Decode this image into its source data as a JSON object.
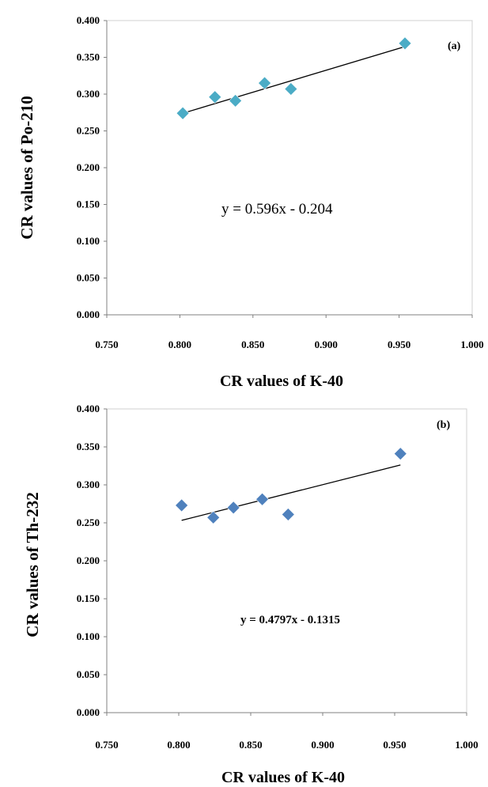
{
  "chart_data": [
    {
      "type": "scatter",
      "panel_label": "(a)",
      "xlabel": "CR values of K-40",
      "ylabel": "CR values of Po-210",
      "xlim": [
        0.75,
        1.0
      ],
      "ylim": [
        0.0,
        0.4
      ],
      "x_ticks": [
        "0.750",
        "0.800",
        "0.850",
        "0.900",
        "0.950",
        "1.000"
      ],
      "y_ticks": [
        "0.000",
        "0.050",
        "0.100",
        "0.150",
        "0.200",
        "0.250",
        "0.300",
        "0.350",
        "0.400"
      ],
      "points": [
        {
          "x": 0.802,
          "y": 0.274
        },
        {
          "x": 0.824,
          "y": 0.296
        },
        {
          "x": 0.838,
          "y": 0.291
        },
        {
          "x": 0.858,
          "y": 0.315
        },
        {
          "x": 0.876,
          "y": 0.307
        },
        {
          "x": 0.954,
          "y": 0.369
        }
      ],
      "trendline": {
        "slope": 0.596,
        "intercept": -0.204,
        "x_range": [
          0.802,
          0.954
        ]
      },
      "equation": "y = 0.596x - 0.204",
      "marker_color": "#4bacc6",
      "grid": false
    },
    {
      "type": "scatter",
      "panel_label": "(b)",
      "xlabel": "CR values of K-40",
      "ylabel": "CR values of Th-232",
      "xlim": [
        0.75,
        1.0
      ],
      "ylim": [
        0.0,
        0.4
      ],
      "x_ticks": [
        "0.750",
        "0.800",
        "0.850",
        "0.900",
        "0.950",
        "1.000"
      ],
      "y_ticks": [
        "0.000",
        "0.050",
        "0.100",
        "0.150",
        "0.200",
        "0.250",
        "0.300",
        "0.350",
        "0.400"
      ],
      "points": [
        {
          "x": 0.802,
          "y": 0.273
        },
        {
          "x": 0.824,
          "y": 0.257
        },
        {
          "x": 0.838,
          "y": 0.27
        },
        {
          "x": 0.858,
          "y": 0.281
        },
        {
          "x": 0.876,
          "y": 0.261
        },
        {
          "x": 0.954,
          "y": 0.341
        }
      ],
      "trendline": {
        "slope": 0.4797,
        "intercept": -0.1315,
        "x_range": [
          0.802,
          0.954
        ]
      },
      "equation": "y = 0.4797x - 0.1315",
      "marker_color": "#4f81bd",
      "grid": false
    }
  ]
}
